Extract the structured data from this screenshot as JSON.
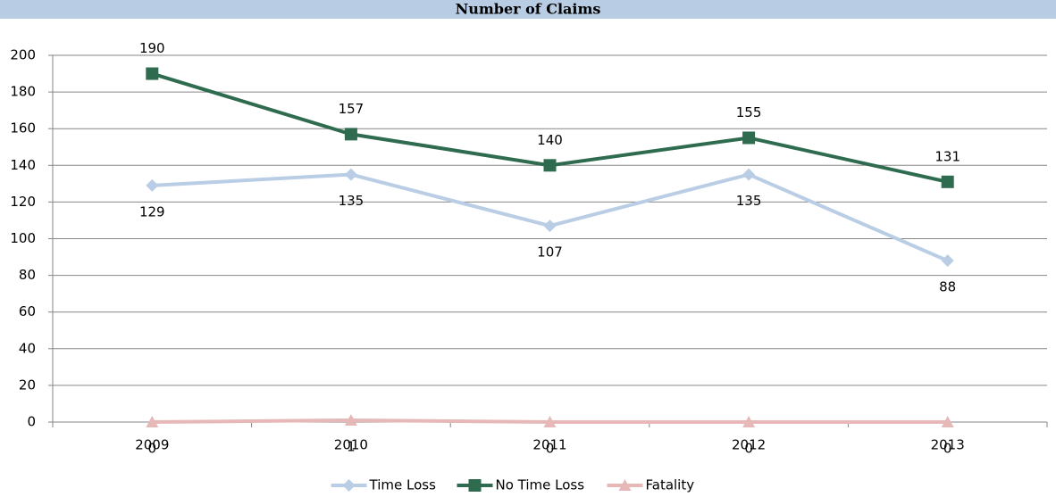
{
  "chart_data": {
    "type": "line",
    "title": "Number of Claims",
    "categories": [
      "2009",
      "2010",
      "2011",
      "2012",
      "2013"
    ],
    "series": [
      {
        "name": "Time Loss",
        "color": "#b9cde5",
        "marker": "diamond",
        "values": [
          129,
          135,
          107,
          135,
          88
        ]
      },
      {
        "name": "No Time Loss",
        "color": "#2e6b4f",
        "marker": "square",
        "values": [
          190,
          157,
          140,
          155,
          131
        ]
      },
      {
        "name": "Fatality",
        "color": "#e6b9b8",
        "marker": "triangle",
        "values": [
          0,
          1,
          0,
          0,
          0
        ]
      }
    ],
    "ylim": [
      0,
      200
    ],
    "yticks": [
      0,
      20,
      40,
      60,
      80,
      100,
      120,
      140,
      160,
      180,
      200
    ],
    "grid": true,
    "legend": "bottom"
  }
}
